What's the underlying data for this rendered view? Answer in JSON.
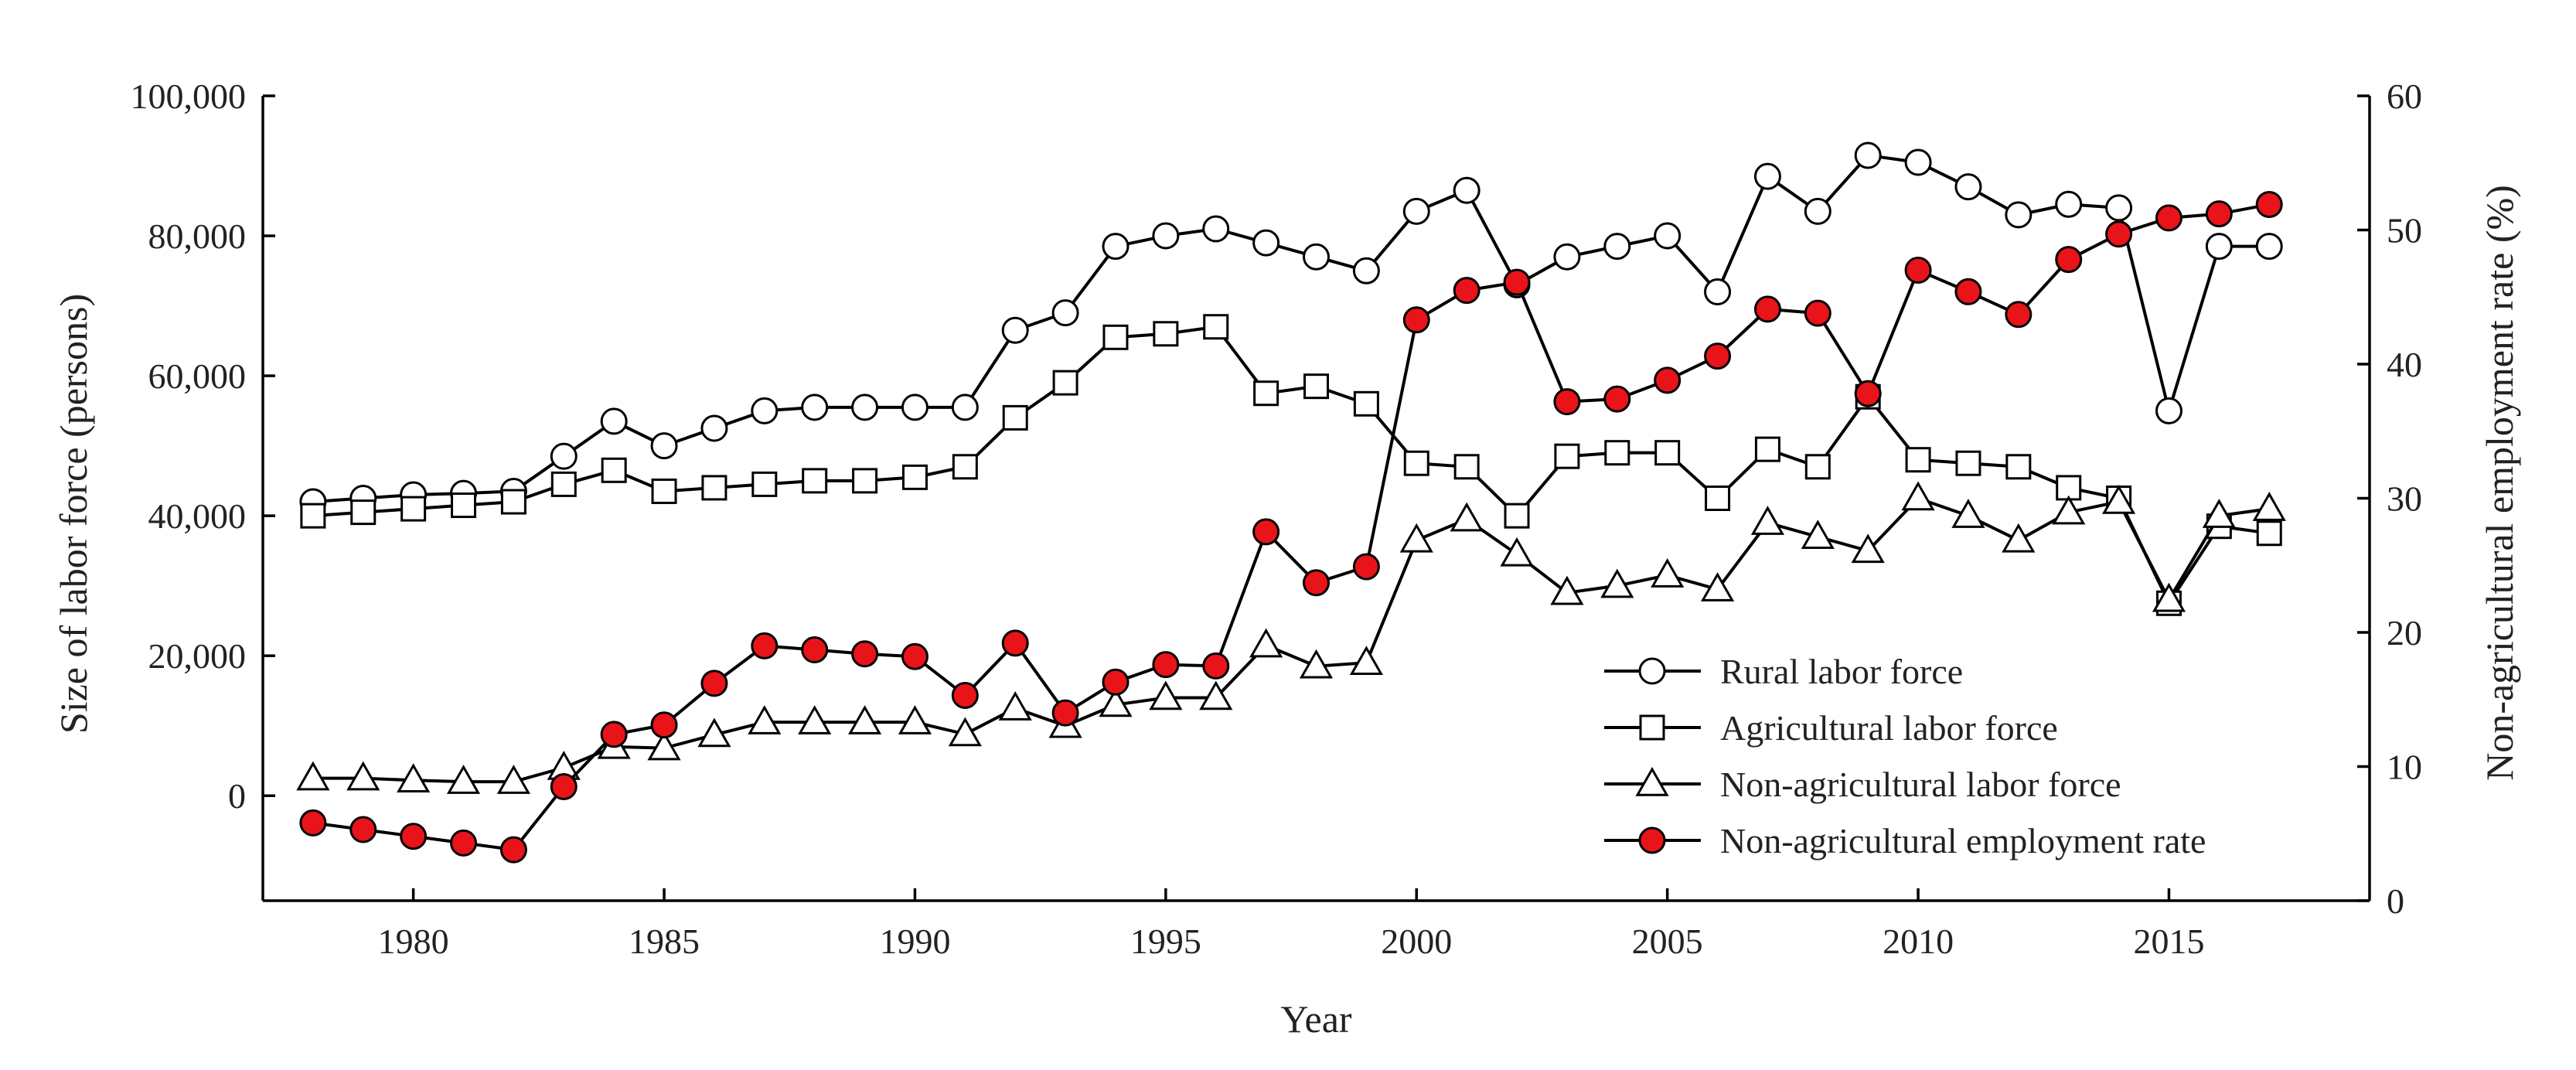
{
  "chart_data": {
    "type": "line",
    "title": "",
    "xlabel": "Year",
    "ylabel_left": "Size of labor force (persons)",
    "ylabel_right": "Non-agricultural employment rate (%)",
    "xlim": [
      1977,
      2019
    ],
    "ylim_left": [
      -15000,
      100000
    ],
    "ylim_right": [
      0,
      60
    ],
    "xticks": [
      1980,
      1985,
      1990,
      1995,
      2000,
      2005,
      2010,
      2015
    ],
    "xtick_labels": [
      "1980",
      "1985",
      "1990",
      "1995",
      "2000",
      "2005",
      "2010",
      "2015"
    ],
    "yticks_left": [
      0,
      20000,
      40000,
      60000,
      80000,
      100000
    ],
    "ytick_labels_left": [
      "0",
      "20,000",
      "40,000",
      "60,000",
      "80,000",
      "100,000"
    ],
    "yticks_right": [
      0,
      10,
      20,
      30,
      40,
      50,
      60
    ],
    "ytick_labels_right": [
      "0",
      "10",
      "20",
      "30",
      "40",
      "50",
      "60"
    ],
    "legend_position": "bottom-right",
    "x": [
      1978,
      1979,
      1980,
      1981,
      1982,
      1983,
      1984,
      1985,
      1986,
      1987,
      1988,
      1989,
      1990,
      1991,
      1992,
      1993,
      1994,
      1995,
      1996,
      1997,
      1998,
      1999,
      2000,
      2001,
      2002,
      2003,
      2004,
      2005,
      2006,
      2007,
      2008,
      2009,
      2010,
      2011,
      2012,
      2013,
      2014,
      2015,
      2016,
      2017
    ],
    "series": [
      {
        "name": "Rural labor force",
        "axis": "left",
        "marker": "circle",
        "color": "#ffffff",
        "values": [
          42000,
          42500,
          43000,
          43200,
          43500,
          48500,
          53500,
          50000,
          52500,
          55000,
          55500,
          55500,
          55500,
          55500,
          66500,
          69000,
          78500,
          80000,
          81000,
          79000,
          77000,
          75000,
          83500,
          86500,
          73000,
          77000,
          78500,
          80000,
          72000,
          88500,
          83500,
          91500,
          90500,
          87000,
          83000,
          84500,
          84000,
          55000,
          78500,
          78500
        ]
      },
      {
        "name": "Agricultural labor force",
        "axis": "left",
        "marker": "square",
        "color": "#ffffff",
        "values": [
          40000,
          40500,
          41000,
          41500,
          42000,
          44500,
          46500,
          43500,
          44000,
          44500,
          45000,
          45000,
          45500,
          47000,
          54000,
          59000,
          65500,
          66000,
          67000,
          57500,
          58500,
          56000,
          47500,
          47000,
          40000,
          48500,
          49000,
          49000,
          42500,
          49500,
          47000,
          57000,
          48000,
          47500,
          47000,
          44000,
          42500,
          27500,
          38500,
          37500
        ]
      },
      {
        "name": "Non-agricultural labor force",
        "axis": "left",
        "marker": "triangle",
        "color": "#ffffff",
        "values": [
          2500,
          2500,
          2200,
          2000,
          2000,
          4000,
          7000,
          6800,
          8700,
          10500,
          10500,
          10500,
          10500,
          8800,
          12500,
          10000,
          13000,
          14000,
          14000,
          21500,
          18500,
          19000,
          36500,
          39500,
          34500,
          29000,
          30000,
          31500,
          29500,
          39000,
          37000,
          35000,
          42500,
          40000,
          36500,
          40500,
          42000,
          28000,
          40000,
          41000
        ]
      },
      {
        "name": "Non-agricultural employment rate",
        "axis": "right",
        "marker": "circle-filled",
        "color": "#e8141a",
        "values": [
          5.8,
          5.3,
          4.8,
          4.3,
          3.8,
          8.5,
          12.4,
          13.1,
          16.2,
          19.0,
          18.7,
          18.4,
          18.2,
          15.3,
          19.2,
          14.0,
          16.3,
          17.6,
          17.5,
          27.5,
          23.7,
          24.9,
          43.3,
          45.5,
          46.1,
          37.2,
          37.4,
          38.8,
          40.6,
          44.1,
          43.8,
          37.8,
          47.0,
          45.4,
          43.7,
          47.8,
          49.7,
          50.9,
          51.2,
          51.9
        ]
      }
    ]
  }
}
